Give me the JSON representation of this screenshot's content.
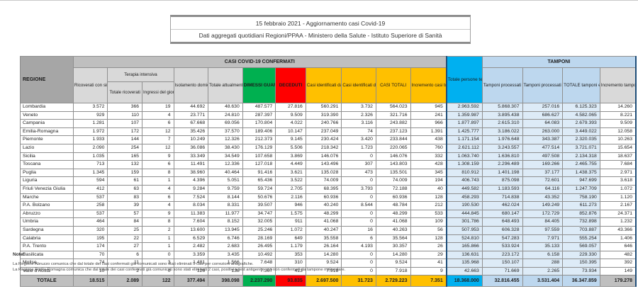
{
  "title": "15 febbraio 2021 - Aggiornamento casi Covid-19",
  "subtitle": "Dati aggregati quotidiani Regioni/PPAA - Ministero della Salute - Istituto Superiore di Sanità",
  "colors": {
    "green": "#00B050",
    "red": "#FF0000",
    "yellow": "#FFC000",
    "cyan": "#00B0F0",
    "light_blue": "#BDD7EE",
    "pale_blue": "#DDEBF7",
    "gray_header": "#BFBFBF",
    "dark_blue_border": "#1F4E79"
  },
  "table": {
    "group_headers": {
      "confirmed": "CASI COVID-19 CONFERMATI",
      "tamponi": "TAMPONI"
    },
    "columns": {
      "regione": "REGIONE",
      "ricoverati": "Ricoverati con sintomi",
      "terapia_intensiva": "Terapia intensiva",
      "ti_totale": "Totale ricoverati",
      "ti_ingressi": "Ingressi del giorno",
      "isolamento": "Isolamento domiciliare",
      "attualmente": "Totale attualmente positivi",
      "dimessi": "DIMESSI GUARITI",
      "deceduti": "DECEDUTI",
      "molecolare": "Casi identificati da test molecolare",
      "antigenico": "Casi identificati da test antigenico rapido",
      "casi_totali": "CASI TOTALI",
      "incremento_casi": "Incremento casi totali (rispetto al giorno precedente)",
      "testate": "Totale persone testate",
      "tamponi_molecolare": "Tamponi processati con test molecolare",
      "tamponi_antigenico": "Tamponi processati con test antigenico rapido",
      "tamponi_totale": "TOTALE tamponi effettuati",
      "incremento_tamponi": "Incremento tamponi totali (rispetto al giorno precedente)"
    },
    "value_keys": [
      "ricoverati",
      "ti_totale",
      "ti_ingressi",
      "isolamento",
      "attualmente",
      "dimessi",
      "deceduti",
      "molecolare",
      "antigenico",
      "casi_totali",
      "incremento_casi",
      "testate",
      "tamponi_molecolare",
      "tamponi_antigenico",
      "tamponi_totale",
      "incremento_tamponi"
    ],
    "rows": [
      {
        "region": "Lombardia",
        "values": [
          "3.572",
          "366",
          "19",
          "44.692",
          "48.630",
          "487.577",
          "27.816",
          "560.291",
          "3.732",
          "564.023",
          "945",
          "2.963.592",
          "5.868.307",
          "257.016",
          "6.125.323",
          "14.260"
        ]
      },
      {
        "region": "Veneto",
        "values": [
          "929",
          "110",
          "4",
          "23.771",
          "24.810",
          "287.397",
          "9.509",
          "319.390",
          "2.326",
          "321.716",
          "241",
          "1.359.987",
          "3.895.438",
          "686.627",
          "4.582.065",
          "8.221"
        ]
      },
      {
        "region": "Campania",
        "values": [
          "1.281",
          "107",
          "6",
          "67.668",
          "69.056",
          "170.804",
          "4.022",
          "240.766",
          "3.116",
          "243.882",
          "966",
          "1.877.897",
          "2.615.310",
          "64.083",
          "2.679.393",
          "9.509"
        ]
      },
      {
        "region": "Emilia-Romagna",
        "values": [
          "1.972",
          "172",
          "12",
          "35.426",
          "37.570",
          "189.406",
          "10.147",
          "237.049",
          "74",
          "237.123",
          "1.391",
          "1.425.777",
          "3.186.022",
          "263.000",
          "3.449.022",
          "12.058"
        ]
      },
      {
        "region": "Piemonte",
        "values": [
          "1.933",
          "144",
          "7",
          "10.249",
          "12.326",
          "212.373",
          "9.145",
          "230.424",
          "3.420",
          "233.844",
          "438",
          "1.171.154",
          "1.976.648",
          "343.387",
          "2.320.035",
          "10.263"
        ]
      },
      {
        "region": "Lazio",
        "values": [
          "2.090",
          "254",
          "12",
          "36.086",
          "38.430",
          "176.129",
          "5.506",
          "218.342",
          "1.723",
          "220.065",
          "760",
          "2.621.112",
          "3.243.557",
          "477.514",
          "3.721.071",
          "15.654"
        ]
      },
      {
        "region": "Sicilia",
        "values": [
          "1.035",
          "165",
          "9",
          "33.349",
          "34.549",
          "107.658",
          "3.869",
          "146.076",
          "0",
          "146.076",
          "332",
          "1.063.740",
          "1.636.810",
          "497.508",
          "2.134.318",
          "18.637"
        ]
      },
      {
        "region": "Toscana",
        "values": [
          "713",
          "132",
          "6",
          "11.491",
          "12.336",
          "127.018",
          "4.449",
          "143.496",
          "307",
          "143.803",
          "428",
          "1.308.159",
          "2.296.489",
          "169.266",
          "2.465.755",
          "7.684"
        ]
      },
      {
        "region": "Puglia",
        "values": [
          "1.345",
          "159",
          "8",
          "38.960",
          "40.464",
          "91.416",
          "3.621",
          "135.028",
          "473",
          "135.501",
          "345",
          "810.912",
          "1.401.198",
          "37.177",
          "1.438.375",
          "2.971"
        ]
      },
      {
        "region": "Liguria",
        "values": [
          "594",
          "61",
          "1",
          "4.396",
          "5.051",
          "65.436",
          "3.522",
          "74.009",
          "0",
          "74.009",
          "194",
          "406.743",
          "875.098",
          "72.601",
          "947.699",
          "3.618"
        ]
      },
      {
        "region": "Friuli Venezia Giulia",
        "values": [
          "412",
          "63",
          "4",
          "9.284",
          "9.759",
          "59.724",
          "2.705",
          "68.395",
          "3.793",
          "72.188",
          "40",
          "449.582",
          "1.183.593",
          "64.116",
          "1.247.709",
          "1.072"
        ]
      },
      {
        "region": "Marche",
        "values": [
          "537",
          "83",
          "6",
          "7.524",
          "8.144",
          "50.676",
          "2.116",
          "60.936",
          "0",
          "60.936",
          "128",
          "458.293",
          "714.838",
          "43.352",
          "758.190",
          "1.120"
        ]
      },
      {
        "region": "P.A. Bolzano",
        "values": [
          "258",
          "39",
          "4",
          "8.034",
          "8.331",
          "39.507",
          "946",
          "40.240",
          "8.544",
          "48.784",
          "212",
          "190.530",
          "462.024",
          "149.249",
          "611.273",
          "2.167"
        ]
      },
      {
        "region": "Abruzzo",
        "values": [
          "537",
          "57",
          "9",
          "11.383",
          "11.977",
          "34.747",
          "1.575",
          "48.299",
          "0",
          "48.299",
          "533",
          "444.845",
          "680.147",
          "172.729",
          "852.876",
          "24.371"
        ]
      },
      {
        "region": "Umbria",
        "values": [
          "464",
          "84",
          "8",
          "7.604",
          "8.152",
          "32.005",
          "911",
          "41.068",
          "0",
          "41.068",
          "109",
          "301.786",
          "648.493",
          "84.405",
          "732.898",
          "1.232"
        ]
      },
      {
        "region": "Sardegna",
        "values": [
          "320",
          "25",
          "2",
          "13.600",
          "13.945",
          "25.246",
          "1.072",
          "40.247",
          "16",
          "40.263",
          "56",
          "507.953",
          "606.328",
          "97.559",
          "703.887",
          "43.366"
        ]
      },
      {
        "region": "Calabria",
        "values": [
          "195",
          "22",
          "1",
          "6.529",
          "6.746",
          "28.169",
          "649",
          "35.558",
          "6",
          "35.564",
          "128",
          "524.810",
          "547.283",
          "7.971",
          "555.254",
          "1.406"
        ]
      },
      {
        "region": "P.A. Trento",
        "values": [
          "174",
          "27",
          "1",
          "2.482",
          "2.683",
          "26.495",
          "1.179",
          "26.164",
          "4.193",
          "30.357",
          "26",
          "165.866",
          "533.924",
          "35.133",
          "569.057",
          "646"
        ]
      },
      {
        "region": "Basilicata",
        "values": [
          "70",
          "6",
          "0",
          "3.359",
          "3.435",
          "10.492",
          "353",
          "14.280",
          "0",
          "14.280",
          "29",
          "136.631",
          "223.172",
          "6.158",
          "229.330",
          "482"
        ]
      },
      {
        "region": "Molise",
        "values": [
          "74",
          "11",
          "3",
          "1.481",
          "1.566",
          "7.648",
          "310",
          "9.524",
          "0",
          "9.524",
          "41",
          "135.968",
          "150.107",
          "288",
          "150.395",
          "392"
        ]
      },
      {
        "region": "Valle d'Aosta",
        "values": [
          "10",
          "2",
          "0",
          "126",
          "138",
          "7.367",
          "413",
          "7.918",
          "0",
          "7.918",
          "9",
          "42.663",
          "71.669",
          "2.265",
          "73.934",
          "149"
        ]
      }
    ],
    "totals": {
      "label": "TOTALE",
      "values": [
        "18.515",
        "2.089",
        "122",
        "377.494",
        "398.098",
        "2.237.290",
        "93.835",
        "2.697.500",
        "31.723",
        "2.729.223",
        "7.351",
        "18.368.000",
        "32.816.455",
        "3.531.404",
        "36.347.859",
        "179.278"
      ]
    }
  },
  "notes": {
    "title": "Note:",
    "lines": [
      "La Regione Abruzzo comunica che dal totale dei casi confermati già comunicati sono stati eliminati 5 casi per correzioni anagrafiche.",
      "La Regione Emilia Romagna comunica che dal totale dei casi confermati già comunicati sono stati eliminati 2 casi, positivi a test antigenico ma non confermati da tampone molecolare."
    ]
  }
}
